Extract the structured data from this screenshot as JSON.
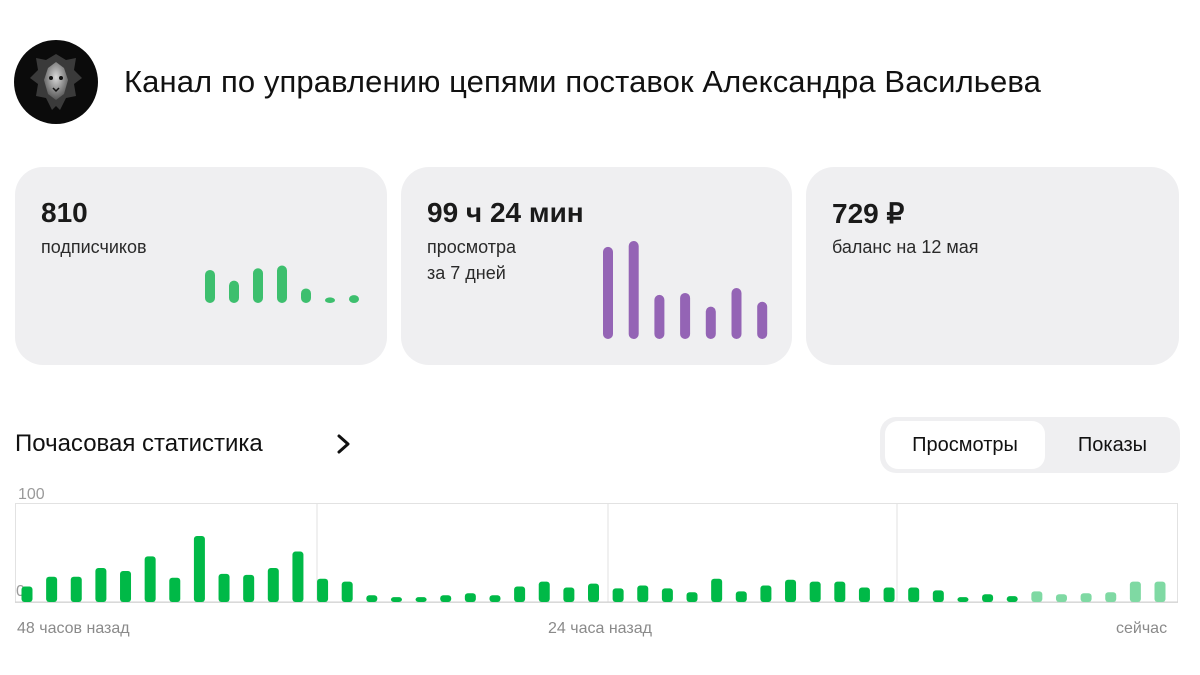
{
  "channel": {
    "title": "Канал по управлению цепями поставок Александра Васильева",
    "avatar_icon": "lion-icon"
  },
  "cards": {
    "subscribers": {
      "value": "810",
      "label": "подписчиков",
      "bars": [
        59,
        40,
        62,
        67,
        26,
        10,
        14
      ],
      "color": "#3dbf6e"
    },
    "views": {
      "value": "99 ч 24 мин",
      "label_line1": "просмотра",
      "label_line2": "за 7 дней",
      "bars": [
        94,
        100,
        45,
        47,
        33,
        52,
        38
      ],
      "color": "#9464b5"
    },
    "balance": {
      "value": "729 ₽",
      "label": "баланс на 12 мая"
    }
  },
  "hourly": {
    "title": "Почасовая статистика",
    "tabs": [
      "Просмотры",
      "Показы"
    ],
    "active_tab": 0
  },
  "chart_data": {
    "type": "bar",
    "title": "Почасовая статистика",
    "ylim": [
      0,
      100
    ],
    "yticks": [
      "100",
      "0"
    ],
    "xlabels": [
      "48 часов назад",
      "24 часа назад",
      "сейчас"
    ],
    "grid": true,
    "values": [
      16,
      26,
      26,
      35,
      32,
      47,
      25,
      68,
      29,
      28,
      35,
      52,
      24,
      21,
      7,
      5,
      5,
      7,
      9,
      7,
      16,
      21,
      15,
      19,
      14,
      17,
      14,
      10,
      24,
      11,
      17,
      23,
      21,
      21,
      15,
      15,
      15,
      12,
      5,
      8,
      6,
      11,
      8,
      9,
      10,
      21,
      21
    ],
    "color": "#00b947",
    "light_color": "#7fd9a3",
    "light_from": 41
  }
}
